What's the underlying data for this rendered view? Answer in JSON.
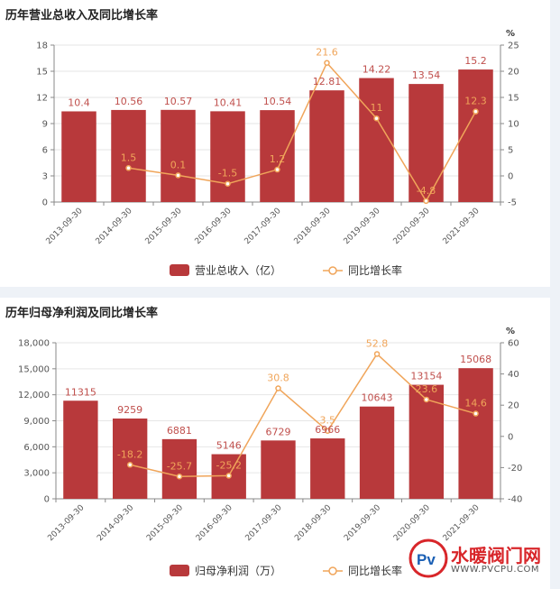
{
  "colors": {
    "bar": "#b8393b",
    "line": "#f0a55a",
    "axis": "#888888",
    "grid": "#e6e6e6",
    "barLabel": "#c0504d",
    "lineLabel": "#f0a55a"
  },
  "chart_data": [
    {
      "type": "bar",
      "title": "历年营业总收入及同比增长率",
      "categories": [
        "2013-09-30",
        "2014-09-30",
        "2015-09-30",
        "2016-09-30",
        "2017-09-30",
        "2018-09-30",
        "2019-09-30",
        "2020-09-30",
        "2021-09-30"
      ],
      "series": [
        {
          "name": "营业总收入（亿）",
          "type": "bar",
          "axis": "left",
          "values": [
            10.4,
            10.56,
            10.57,
            10.41,
            10.54,
            12.81,
            14.22,
            13.54,
            15.2
          ]
        },
        {
          "name": "同比增长率",
          "type": "line",
          "axis": "right",
          "values": [
            null,
            1.5,
            0.1,
            -1.5,
            1.2,
            21.6,
            11,
            -4.8,
            12.3
          ]
        }
      ],
      "ylim_left": [
        0,
        18
      ],
      "yticks_left": [
        0,
        3,
        6,
        9,
        12,
        15,
        18
      ],
      "ylim_right": [
        -5,
        25
      ],
      "yticks_right": [
        -5,
        0,
        5,
        10,
        15,
        20,
        25
      ],
      "right_unit": "%",
      "grid": true,
      "legend": "bottom"
    },
    {
      "type": "bar",
      "title": "历年归母净利润及同比增长率",
      "categories": [
        "2013-09-30",
        "2014-09-30",
        "2015-09-30",
        "2016-09-30",
        "2017-09-30",
        "2018-09-30",
        "2019-09-30",
        "2020-09-30",
        "2021-09-30"
      ],
      "series": [
        {
          "name": "归母净利润（万）",
          "type": "bar",
          "axis": "left",
          "values": [
            11315,
            9259,
            6881,
            5146,
            6729,
            6966,
            10643,
            13154,
            15068
          ]
        },
        {
          "name": "同比增长率",
          "type": "line",
          "axis": "right",
          "values": [
            null,
            -18.2,
            -25.7,
            -25.2,
            30.8,
            3.5,
            52.8,
            23.6,
            14.6
          ]
        }
      ],
      "ylim_left": [
        0,
        18000
      ],
      "yticks_left": [
        "0",
        "3,000",
        "6,000",
        "9,000",
        "12,000",
        "15,000",
        "18,000"
      ],
      "ylim_right": [
        -40,
        60
      ],
      "yticks_right": [
        -40,
        -20,
        0,
        20,
        40,
        60
      ],
      "right_unit": "%",
      "grid": true,
      "legend": "bottom"
    }
  ],
  "watermark": {
    "text": "水暖阀门网",
    "url": "WWW.PVCPU.COM",
    "logo_text": "Pv"
  }
}
